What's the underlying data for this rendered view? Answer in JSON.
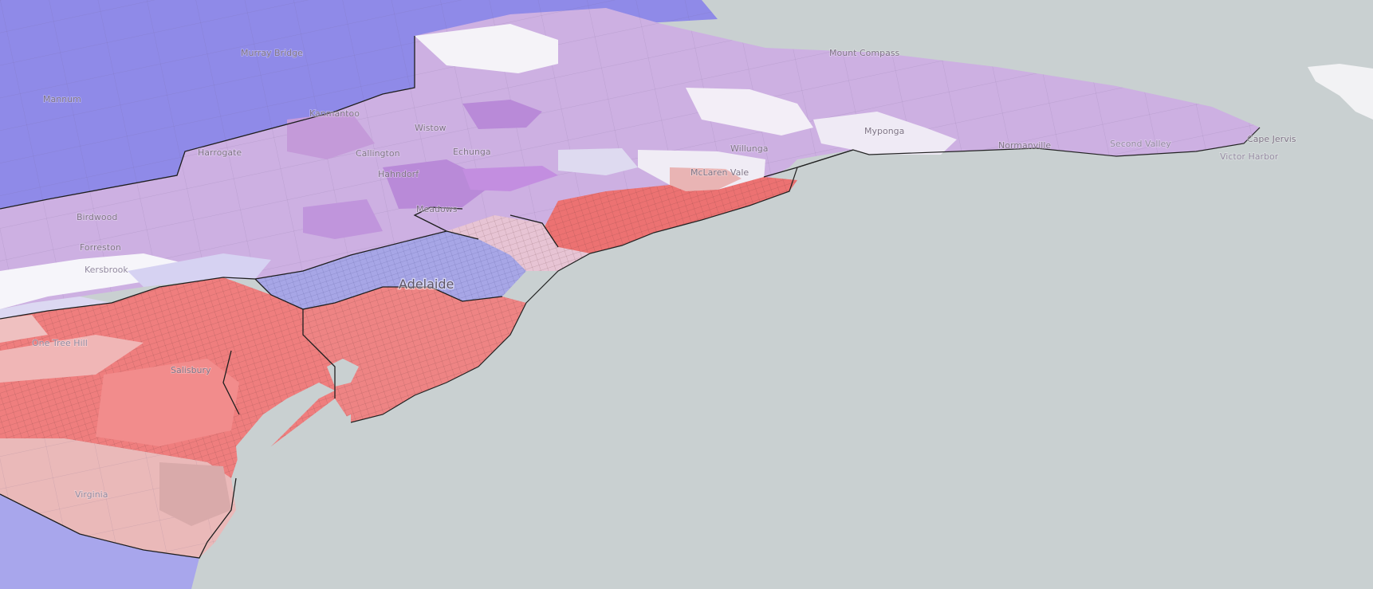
{
  "map": {
    "colors": {
      "sea": "#c9d0d1",
      "blue_region": "#8f8ae8",
      "purple_region": "#c8a8e0",
      "red_region": "#ef7f7f",
      "pink_region": "#eab8b8",
      "white_region": "#f2eff6",
      "boundary": "#222222"
    },
    "labels": {
      "adelaide": "Adelaide",
      "salisbury": "Salisbury",
      "virginia": "Virginia",
      "murray_bridge": "Murray Bridge",
      "mannum": "Mannum",
      "harrogate": "Harrogate",
      "birdwood": "Birdwood",
      "forreston": "Forreston",
      "hallbrook": "Kersbrook",
      "chandlers_hill": "One Tree Hill",
      "kanmantoo": "Kanmantoo",
      "wistow": "Wistow",
      "callington": "Callington",
      "echunga": "Echunga",
      "hahndorf": "Hahndorf",
      "mclaren_vale": "McLaren Vale",
      "willunga": "Willunga",
      "myponga": "Myponga",
      "normanville": "Normanville",
      "second_valley": "Second Valley",
      "cape_jervis": "Cape Jervis",
      "victor_harbor": "Victor Harbor",
      "meadows": "Meadows",
      "mount_compass": "Mount Compass"
    }
  }
}
